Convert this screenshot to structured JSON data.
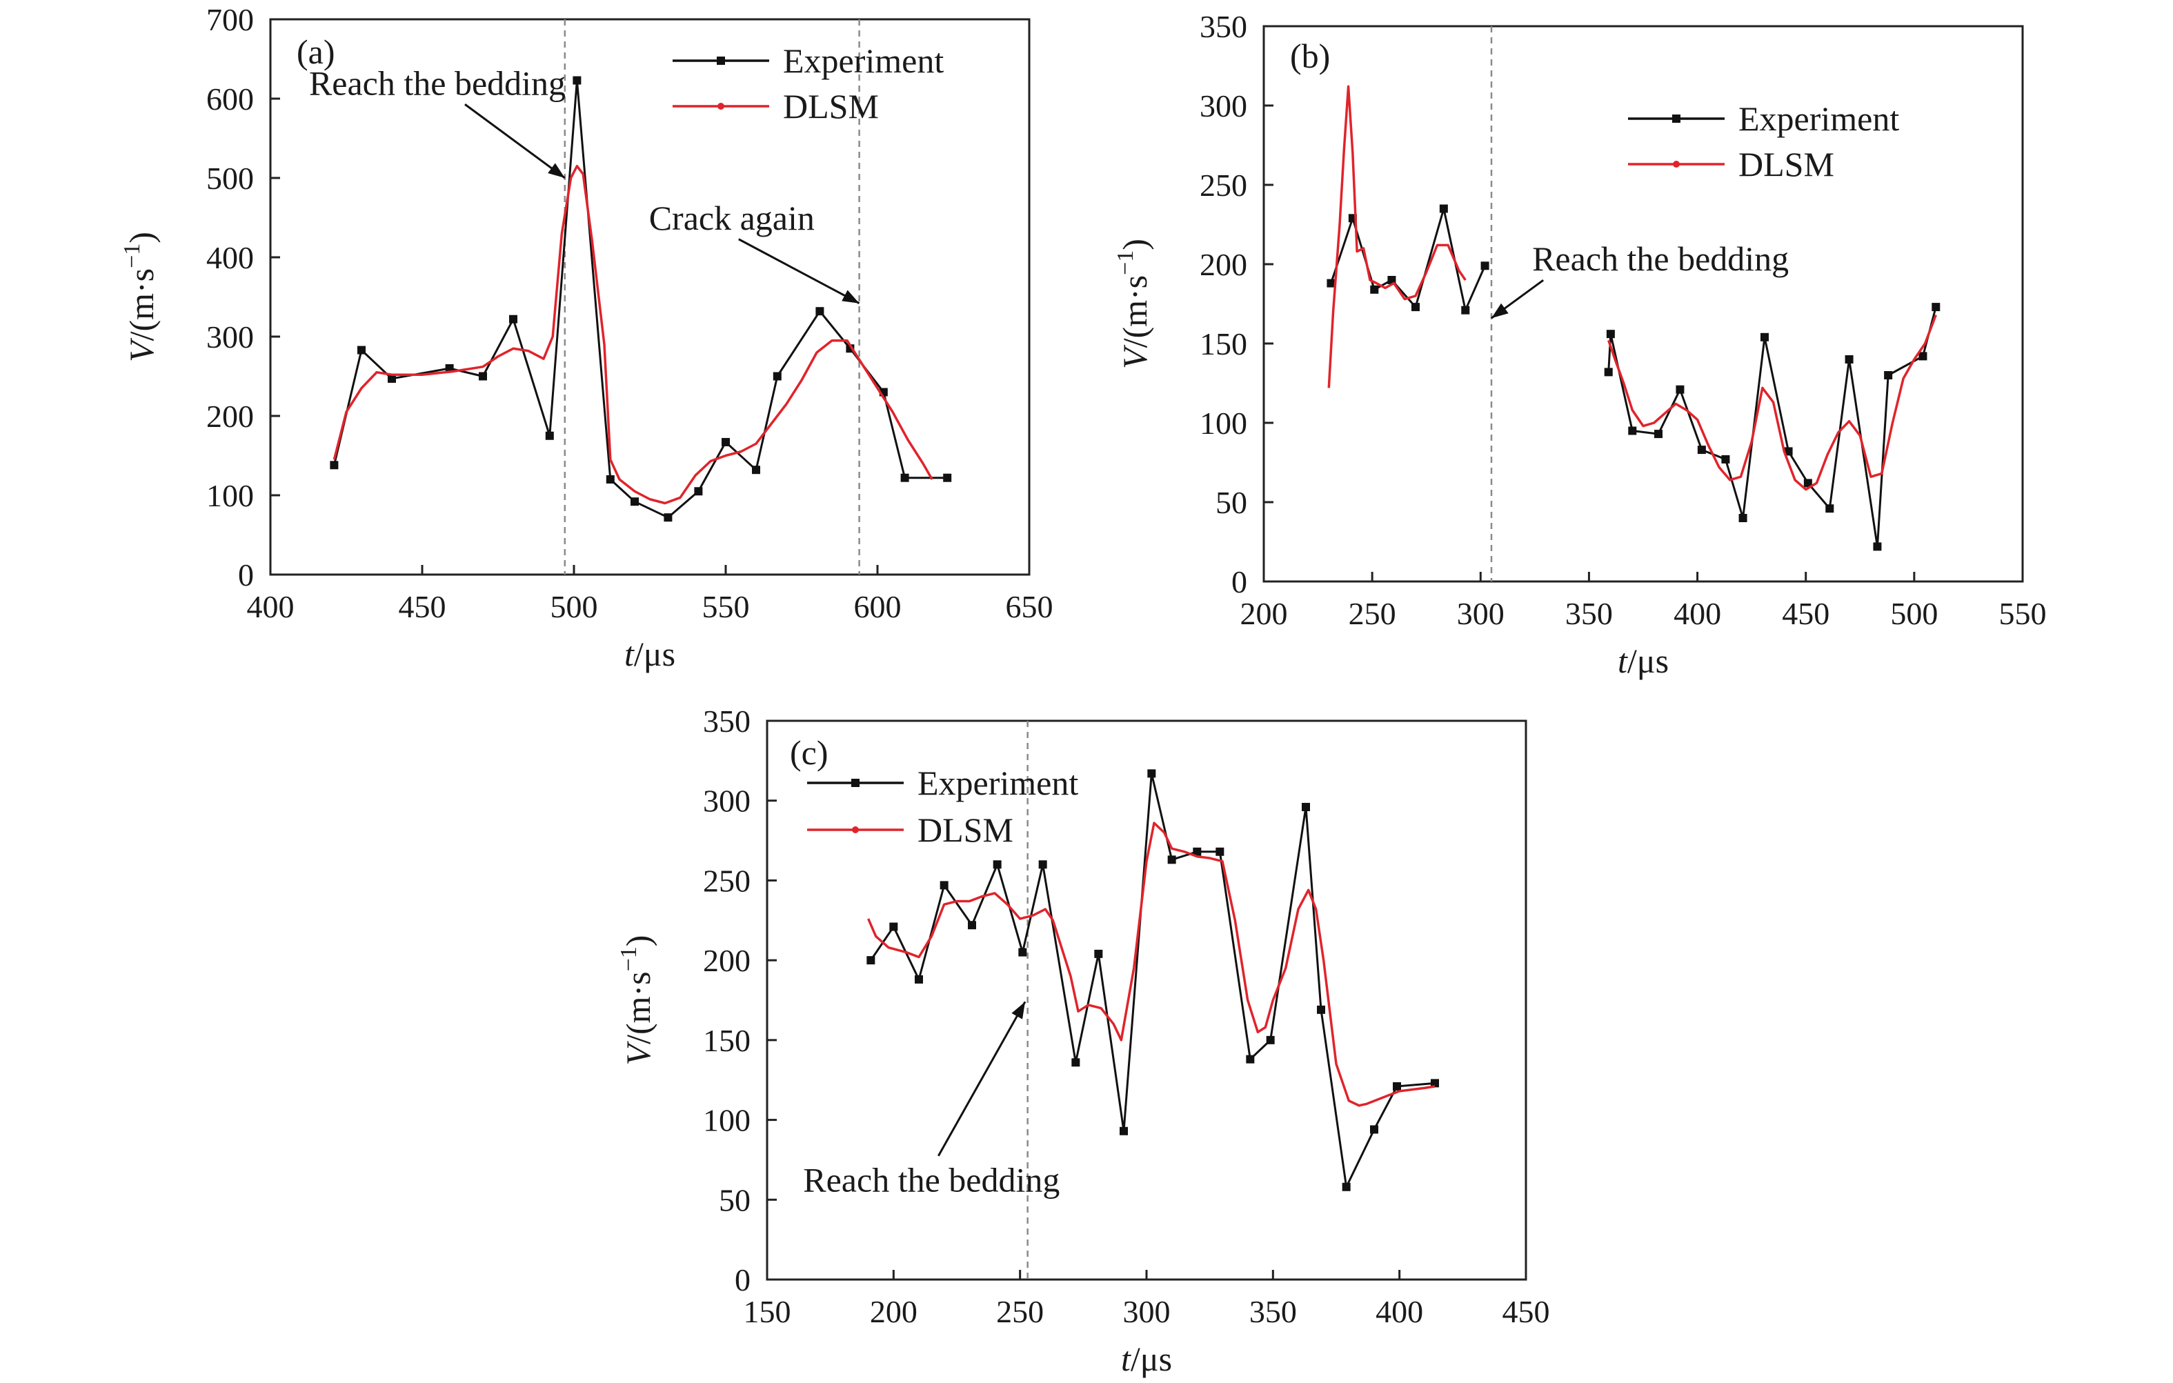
{
  "chart_data": [
    {
      "type": "line",
      "panel_label": "(a)",
      "xlabel": {
        "var": "t",
        "unit": "/μs"
      },
      "ylabel": {
        "var": "V",
        "unit": "/(m·s",
        "sup": "−1",
        "close": ")"
      },
      "xlim": [
        400,
        650
      ],
      "ylim": [
        0,
        700
      ],
      "xticks": [
        400,
        450,
        500,
        550,
        600,
        650
      ],
      "yticks": [
        0,
        100,
        200,
        300,
        400,
        500,
        600,
        700
      ],
      "grid": false,
      "legend_position": "top-right",
      "reference_lines_x": [
        497,
        594
      ],
      "annotations": [
        {
          "text": "Reach the bedding",
          "x": 455,
          "y": 605,
          "arrow_to": [
            497,
            500
          ]
        },
        {
          "text": "Crack again",
          "x": 552,
          "y": 435,
          "arrow_to": [
            594,
            342
          ]
        }
      ],
      "series": [
        {
          "name": "Experiment",
          "color": "#111111",
          "marker": "square",
          "x": [
            421,
            430,
            440,
            459,
            470,
            480,
            492,
            501,
            512,
            520,
            531,
            541,
            550,
            560,
            567,
            581,
            591,
            602,
            609,
            623
          ],
          "y": [
            138,
            283,
            247,
            260,
            250,
            322,
            175,
            623,
            120,
            92,
            72,
            105,
            167,
            132,
            250,
            332,
            285,
            230,
            122,
            122
          ]
        },
        {
          "name": "DLSM",
          "color": "#e0242b",
          "marker": "none",
          "x": [
            421,
            425,
            430,
            435,
            440,
            450,
            460,
            470,
            475,
            480,
            485,
            490,
            493,
            496,
            499,
            501,
            503,
            506,
            510,
            512,
            515,
            520,
            525,
            530,
            535,
            540,
            545,
            550,
            555,
            560,
            565,
            570,
            575,
            580,
            585,
            590,
            595,
            600,
            605,
            610,
            615,
            618
          ],
          "y": [
            145,
            205,
            235,
            255,
            252,
            252,
            256,
            262,
            275,
            285,
            282,
            272,
            300,
            430,
            500,
            515,
            505,
            420,
            290,
            145,
            120,
            105,
            95,
            90,
            97,
            125,
            143,
            150,
            155,
            165,
            190,
            215,
            245,
            280,
            295,
            295,
            265,
            235,
            205,
            170,
            140,
            120
          ]
        }
      ]
    },
    {
      "type": "line",
      "panel_label": "(b)",
      "xlabel": {
        "var": "t",
        "unit": "/μs"
      },
      "ylabel": {
        "var": "V",
        "unit": "/(m·s",
        "sup": "−1",
        "close": ")"
      },
      "xlim": [
        200,
        550
      ],
      "ylim": [
        0,
        350
      ],
      "xticks": [
        200,
        250,
        300,
        350,
        400,
        450,
        500,
        550
      ],
      "yticks": [
        0,
        50,
        100,
        150,
        200,
        250,
        300,
        350
      ],
      "grid": false,
      "legend_position": "top-right",
      "reference_lines_x": [
        305
      ],
      "annotations": [
        {
          "text": "Reach the bedding",
          "x": 383,
          "y": 196,
          "arrow_to": [
            305,
            166
          ]
        }
      ],
      "series": [
        {
          "name": "Experiment",
          "color": "#111111",
          "marker": "square",
          "segments": [
            {
              "x": [
                231,
                241,
                251,
                259,
                270,
                283,
                293,
                302
              ],
              "y": [
                188,
                229,
                184,
                190,
                173,
                235,
                171,
                199
              ]
            },
            {
              "x": [
                359,
                360,
                370,
                382,
                392,
                402,
                413,
                421,
                431,
                442,
                451,
                461,
                470,
                483,
                488,
                504,
                510
              ],
              "y": [
                132,
                156,
                95,
                93,
                121,
                83,
                77,
                40,
                154,
                82,
                62,
                46,
                140,
                22,
                130,
                142,
                173
              ]
            }
          ]
        },
        {
          "name": "DLSM",
          "color": "#e0242b",
          "marker": "none",
          "segments": [
            {
              "x": [
                230,
                232,
                235,
                237,
                239,
                241,
                243,
                246,
                249,
                252,
                256,
                260,
                265,
                270,
                275,
                280,
                285,
                290,
                293
              ],
              "y": [
                122,
                170,
                225,
                272,
                312,
                270,
                208,
                210,
                190,
                188,
                185,
                188,
                178,
                180,
                195,
                212,
                212,
                196,
                190
              ]
            },
            {
              "x": [
                359,
                362,
                366,
                370,
                375,
                380,
                385,
                390,
                395,
                400,
                405,
                410,
                415,
                420,
                425,
                430,
                435,
                440,
                445,
                450,
                455,
                460,
                465,
                470,
                475,
                480,
                485,
                490,
                495,
                500,
                505,
                510
              ],
              "y": [
                152,
                140,
                125,
                108,
                98,
                100,
                106,
                112,
                108,
                102,
                86,
                72,
                64,
                66,
                88,
                122,
                113,
                82,
                64,
                58,
                62,
                80,
                94,
                101,
                92,
                66,
                68,
                100,
                128,
                140,
                150,
                168
              ]
            }
          ]
        }
      ]
    },
    {
      "type": "line",
      "panel_label": "(c)",
      "xlabel": {
        "var": "t",
        "unit": "/μs"
      },
      "ylabel": {
        "var": "V",
        "unit": "/(m·s",
        "sup": "−1",
        "close": ")"
      },
      "xlim": [
        150,
        450
      ],
      "ylim": [
        0,
        350
      ],
      "xticks": [
        150,
        200,
        250,
        300,
        350,
        400,
        450
      ],
      "yticks": [
        0,
        50,
        100,
        150,
        200,
        250,
        300,
        350
      ],
      "grid": false,
      "legend_position": "top-left",
      "reference_lines_x": [
        253
      ],
      "annotations": [
        {
          "text": "Reach the bedding",
          "x": 215,
          "y": 55,
          "arrow_to": [
            252,
            174
          ]
        }
      ],
      "series": [
        {
          "name": "Experiment",
          "color": "#111111",
          "marker": "square",
          "x": [
            191,
            200,
            210,
            220,
            231,
            241,
            251,
            259,
            272,
            281,
            291,
            302,
            310,
            320,
            329,
            341,
            349,
            363,
            369,
            379,
            390,
            399,
            414
          ],
          "y": [
            200,
            221,
            188,
            247,
            222,
            260,
            205,
            260,
            136,
            204,
            93,
            317,
            263,
            268,
            268,
            138,
            150,
            296,
            169,
            58,
            94,
            121,
            123
          ]
        },
        {
          "name": "DLSM",
          "color": "#e0242b",
          "marker": "none",
          "x": [
            190,
            193,
            198,
            205,
            210,
            215,
            220,
            225,
            230,
            235,
            240,
            245,
            250,
            255,
            260,
            263,
            267,
            270,
            273,
            277,
            282,
            287,
            290,
            295,
            300,
            303,
            307,
            310,
            315,
            320,
            325,
            330,
            335,
            340,
            344,
            347,
            350,
            355,
            360,
            364,
            367,
            370,
            375,
            380,
            384,
            387,
            395,
            400,
            410,
            414
          ],
          "y": [
            226,
            215,
            208,
            205,
            202,
            215,
            235,
            237,
            237,
            240,
            242,
            235,
            226,
            228,
            232,
            225,
            205,
            190,
            168,
            172,
            170,
            160,
            150,
            195,
            262,
            286,
            280,
            270,
            268,
            265,
            264,
            262,
            225,
            175,
            155,
            158,
            175,
            195,
            232,
            244,
            232,
            200,
            135,
            112,
            109,
            110,
            115,
            118,
            120,
            121
          ]
        }
      ]
    }
  ]
}
